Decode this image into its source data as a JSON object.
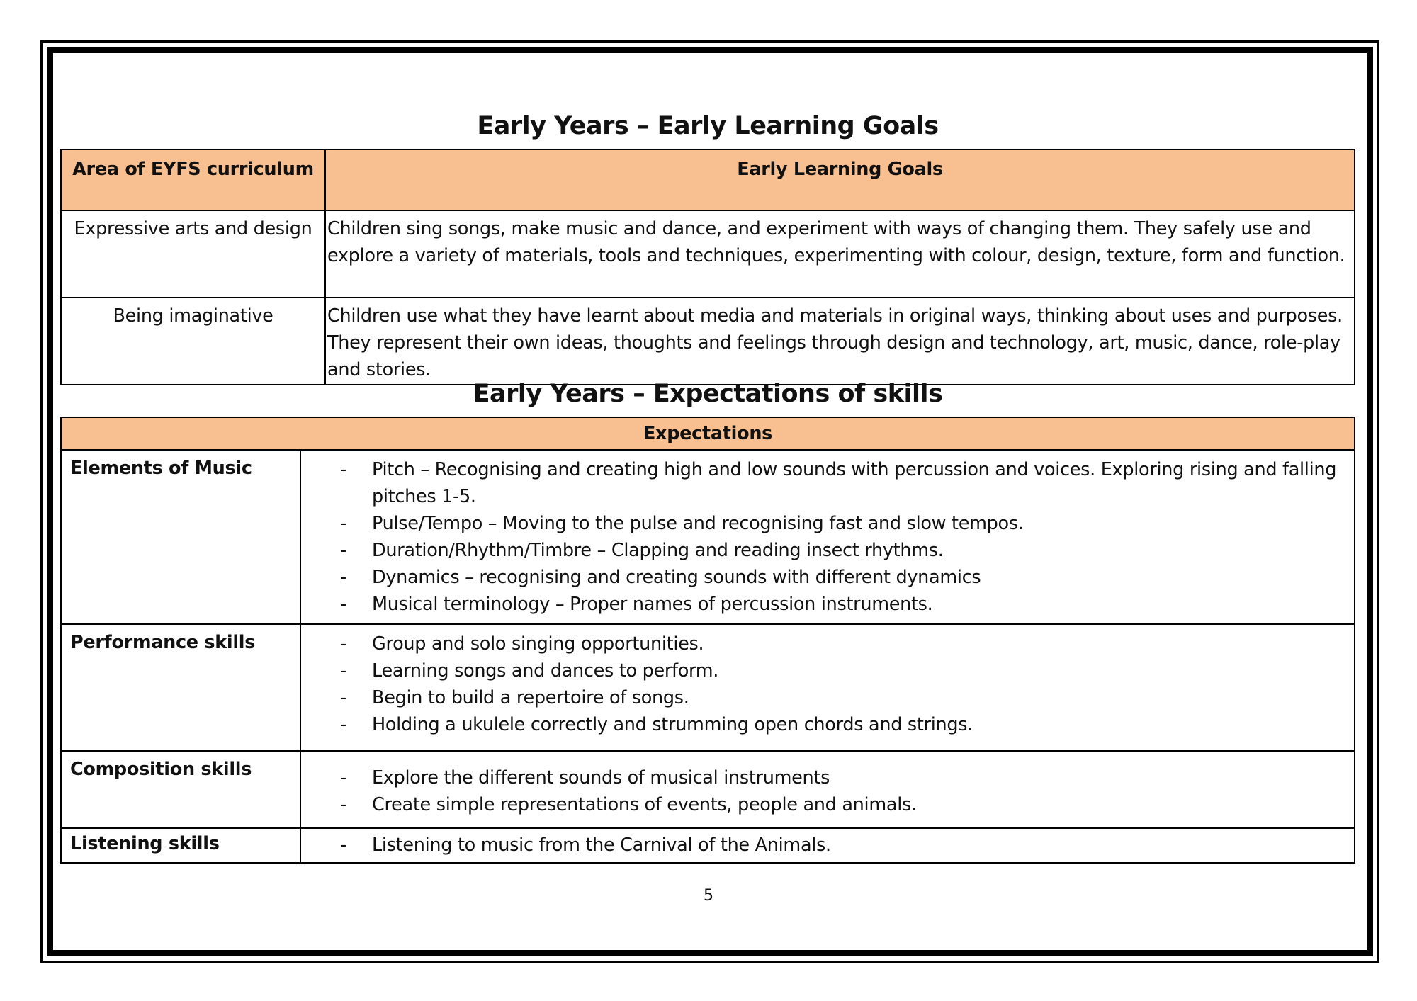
{
  "goals": {
    "title": "Early Years – Early Learning Goals",
    "headers": [
      "Area of EYFS curriculum",
      "Early Learning Goals"
    ],
    "rows": [
      {
        "area": "Expressive arts and design",
        "goal": "Children sing songs, make music and dance, and experiment with ways of changing them. They safely use and explore a variety of materials, tools and techniques, experimenting with colour, design, texture, form and function."
      },
      {
        "area": "Being imaginative",
        "goal": "Children use what they have learnt about media and materials in original ways, thinking about uses and purposes. They represent their own ideas, thoughts and feelings through design and technology, art, music, dance, role-play and stories."
      }
    ]
  },
  "skills": {
    "title": "Early Years – Expectations of skills",
    "header": "Expectations",
    "rows": [
      {
        "label": "Elements of Music",
        "items": [
          "Pitch – Recognising and creating high and low sounds with percussion and voices. Exploring rising and falling pitches 1-5.",
          "Pulse/Tempo – Moving to the pulse and recognising fast and slow tempos.",
          "Duration/Rhythm/Timbre – Clapping and reading insect rhythms.",
          "Dynamics – recognising and creating sounds with different dynamics",
          "Musical terminology – Proper names of percussion instruments."
        ]
      },
      {
        "label": "Performance skills",
        "items": [
          "Group and solo singing opportunities.",
          "Learning songs and dances to perform.",
          "Begin to build a repertoire of songs.",
          "Holding a ukulele correctly and strumming open chords and strings."
        ]
      },
      {
        "label": "Composition skills",
        "items": [
          "Explore the different sounds of musical instruments",
          "Create simple representations of events, people and animals."
        ]
      },
      {
        "label": "Listening skills",
        "items": [
          "Listening to music from the Carnival of the Animals."
        ]
      }
    ]
  },
  "bullet": "-",
  "page_number": "5",
  "colors": {
    "header_fill": "#F8C091"
  }
}
